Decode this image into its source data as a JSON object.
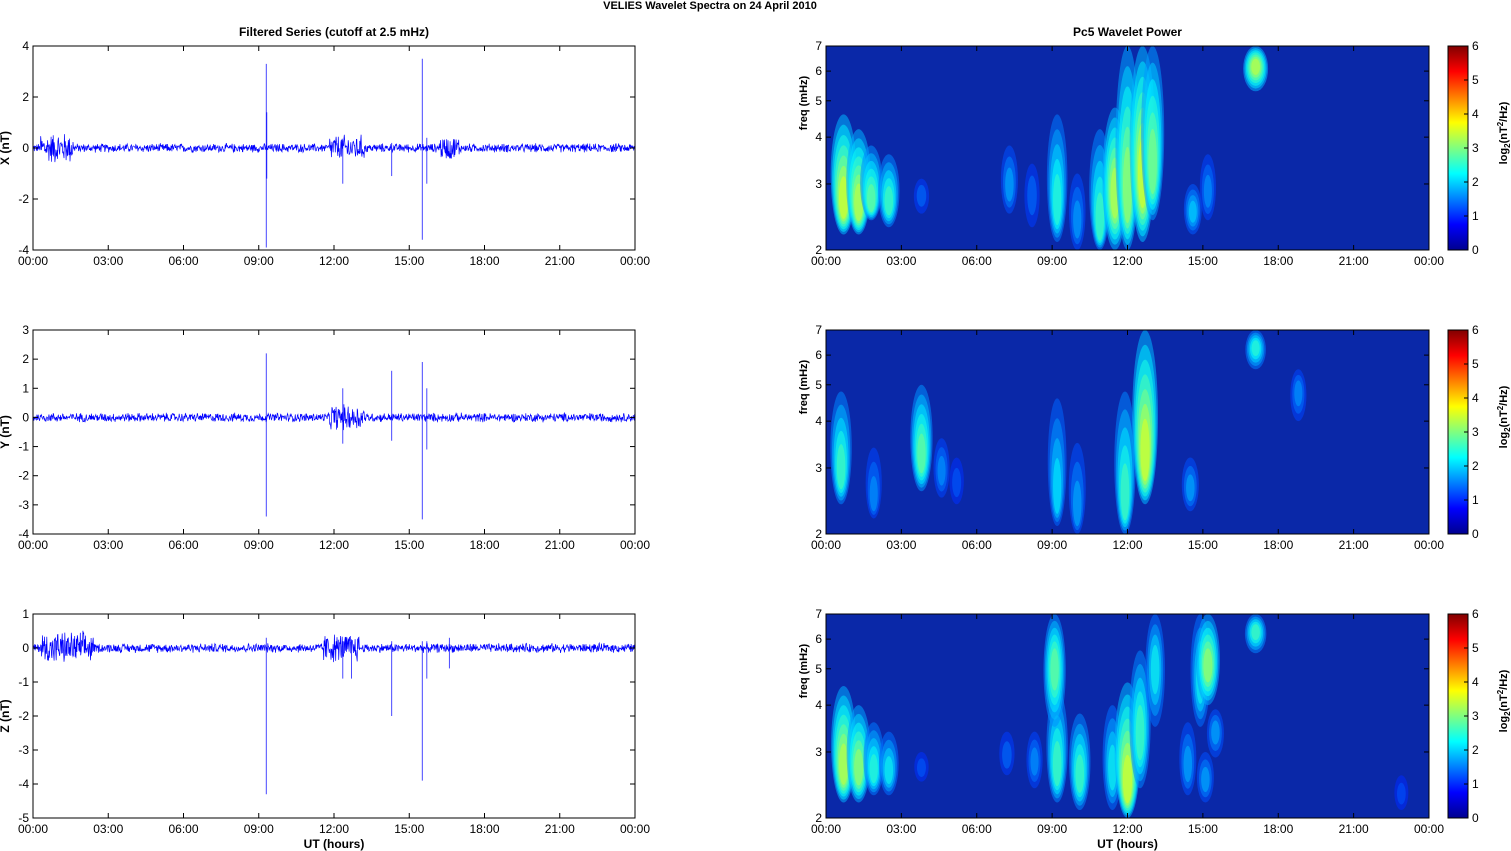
{
  "suptitle": "VELIES Wavelet Spectra on 24 April     2010",
  "colors": {
    "trace": "#0000ff",
    "background": "#ffffff",
    "axis": "#000000",
    "spectrum_floor": "#0a28a8"
  },
  "chart_data": [
    {
      "type": "line",
      "title": "Filtered Series (cutoff at 2.5 mHz)",
      "xlabel": "",
      "ylabel": "X (nT)",
      "xticks": [
        "00:00",
        "03:00",
        "06:00",
        "09:00",
        "12:00",
        "15:00",
        "18:00",
        "21:00",
        "00:00"
      ],
      "xlim": [
        0,
        24
      ],
      "ylim": [
        -4,
        4
      ],
      "yticks": [
        "-4",
        "-2",
        "0",
        "2",
        "4"
      ],
      "noise_amplitude": 0.18,
      "bursts": [
        [
          0.3,
          1.6,
          0.45
        ],
        [
          11.8,
          13.2,
          0.35
        ],
        [
          16.2,
          17.0,
          0.3
        ]
      ],
      "spikes": [
        {
          "t": 9.3,
          "min": -3.9,
          "max": 3.3
        },
        {
          "t": 9.32,
          "min": -1.2,
          "max": 1.4
        },
        {
          "t": 12.35,
          "min": -1.4,
          "max": 0.3
        },
        {
          "t": 14.3,
          "min": -1.1,
          "max": 0.2
        },
        {
          "t": 15.52,
          "min": -3.6,
          "max": 3.5
        },
        {
          "t": 15.7,
          "min": -1.4,
          "max": 0.4
        }
      ]
    },
    {
      "type": "heatmap",
      "title": "Pc5 Wavelet Power",
      "xlabel": "",
      "ylabel": "freq (mHz)",
      "colorbar_label": "log2(nT2/Hz)",
      "colorbar_ticks": [
        "0",
        "1",
        "2",
        "3",
        "4",
        "5",
        "6"
      ],
      "clim": [
        0,
        6
      ],
      "colormap": "jet",
      "xticks": [
        "00:00",
        "03:00",
        "06:00",
        "09:00",
        "12:00",
        "15:00",
        "18:00",
        "21:00",
        "00:00"
      ],
      "xlim": [
        0,
        24
      ],
      "ylim": [
        2,
        7
      ],
      "yscale": "log",
      "yticks": [
        "2",
        "3",
        "4",
        "5",
        "6",
        "7"
      ],
      "blobs": [
        [
          0.7,
          2.55,
          2.2,
          4.6,
          3.6
        ],
        [
          1.3,
          2.5,
          2.2,
          4.2,
          3.4
        ],
        [
          1.8,
          2.6,
          2.4,
          3.8,
          2.8
        ],
        [
          2.5,
          2.6,
          2.3,
          3.6,
          2.6
        ],
        [
          3.8,
          2.8,
          2.5,
          3.1,
          1.2
        ],
        [
          7.3,
          2.9,
          2.5,
          3.8,
          1.6
        ],
        [
          8.2,
          2.8,
          2.3,
          3.4,
          1.2
        ],
        [
          9.2,
          2.5,
          2.1,
          4.6,
          2.4
        ],
        [
          10.0,
          2.3,
          2.0,
          3.2,
          1.5
        ],
        [
          10.9,
          2.2,
          2.0,
          4.2,
          2.6
        ],
        [
          11.5,
          2.7,
          2.0,
          4.8,
          3.4
        ],
        [
          12.0,
          2.6,
          2.0,
          7.0,
          3.2
        ],
        [
          12.6,
          2.9,
          2.1,
          7.0,
          3.6
        ],
        [
          13.0,
          3.1,
          2.4,
          7.0,
          3.0
        ],
        [
          14.6,
          2.5,
          2.2,
          3.0,
          1.8
        ],
        [
          15.2,
          2.8,
          2.4,
          3.6,
          1.4
        ],
        [
          17.1,
          6.2,
          5.3,
          7.0,
          3.4
        ]
      ]
    },
    {
      "type": "line",
      "title": "",
      "xlabel": "",
      "ylabel": "Y (nT)",
      "xticks": [
        "00:00",
        "03:00",
        "06:00",
        "09:00",
        "12:00",
        "15:00",
        "18:00",
        "21:00",
        "00:00"
      ],
      "xlim": [
        0,
        24
      ],
      "ylim": [
        -4,
        3
      ],
      "yticks": [
        "-4",
        "-3",
        "-2",
        "-1",
        "0",
        "1",
        "2",
        "3"
      ],
      "noise_amplitude": 0.16,
      "bursts": [
        [
          11.8,
          13.2,
          0.3
        ]
      ],
      "spikes": [
        {
          "t": 9.3,
          "min": -3.4,
          "max": 2.2
        },
        {
          "t": 12.35,
          "min": -0.9,
          "max": 1.0
        },
        {
          "t": 14.3,
          "min": -0.8,
          "max": 1.6
        },
        {
          "t": 15.52,
          "min": -3.5,
          "max": 1.9
        },
        {
          "t": 15.7,
          "min": -1.1,
          "max": 1.0
        }
      ]
    },
    {
      "type": "heatmap",
      "title": "",
      "xlabel": "",
      "ylabel": "freq (mHz)",
      "colorbar_label": "log2(nT2/Hz)",
      "colorbar_ticks": [
        "0",
        "1",
        "2",
        "3",
        "4",
        "5",
        "6"
      ],
      "clim": [
        0,
        6
      ],
      "colormap": "jet",
      "xticks": [
        "00:00",
        "03:00",
        "06:00",
        "09:00",
        "12:00",
        "15:00",
        "18:00",
        "21:00",
        "00:00"
      ],
      "xlim": [
        0,
        24
      ],
      "ylim": [
        2,
        7
      ],
      "yscale": "log",
      "yticks": [
        "2",
        "3",
        "4",
        "5",
        "6",
        "7"
      ],
      "blobs": [
        [
          0.6,
          2.8,
          2.4,
          4.8,
          2.6
        ],
        [
          1.9,
          2.4,
          2.2,
          3.4,
          1.4
        ],
        [
          3.8,
          3.1,
          2.6,
          5.0,
          2.8
        ],
        [
          4.6,
          2.9,
          2.5,
          3.6,
          1.4
        ],
        [
          5.2,
          2.7,
          2.4,
          3.2,
          1.0
        ],
        [
          9.2,
          2.4,
          2.1,
          4.6,
          2.0
        ],
        [
          10.0,
          2.2,
          2.0,
          3.5,
          1.6
        ],
        [
          11.9,
          2.3,
          2.0,
          4.8,
          2.6
        ],
        [
          12.7,
          3.0,
          2.4,
          7.0,
          3.6
        ],
        [
          14.5,
          2.6,
          2.3,
          3.2,
          1.6
        ],
        [
          17.1,
          6.3,
          5.5,
          7.0,
          2.4
        ],
        [
          18.8,
          4.8,
          4.0,
          5.5,
          1.4
        ]
      ]
    },
    {
      "type": "line",
      "title": "",
      "xlabel": "UT (hours)",
      "ylabel": "Z (nT)",
      "xticks": [
        "00:00",
        "03:00",
        "06:00",
        "09:00",
        "12:00",
        "15:00",
        "18:00",
        "21:00",
        "00:00"
      ],
      "xlim": [
        0,
        24
      ],
      "ylim": [
        -5,
        1
      ],
      "yticks": [
        "-5",
        "-4",
        "-3",
        "-2",
        "-1",
        "0",
        "1"
      ],
      "noise_amplitude": 0.14,
      "bursts": [
        [
          0.3,
          2.4,
          0.35
        ],
        [
          11.5,
          13.0,
          0.3
        ]
      ],
      "spikes": [
        {
          "t": 9.3,
          "min": -4.3,
          "max": 0.3
        },
        {
          "t": 12.35,
          "min": -0.9,
          "max": 0.2
        },
        {
          "t": 12.7,
          "min": -0.9,
          "max": 0.2
        },
        {
          "t": 14.3,
          "min": -2.0,
          "max": 0.2
        },
        {
          "t": 15.52,
          "min": -3.9,
          "max": 0.2
        },
        {
          "t": 15.7,
          "min": -0.9,
          "max": 0.2
        },
        {
          "t": 16.6,
          "min": -0.6,
          "max": 0.3
        }
      ]
    },
    {
      "type": "heatmap",
      "title": "",
      "xlabel": "UT (hours)",
      "ylabel": "freq (mHz)",
      "colorbar_label": "log2(nT2/Hz)",
      "colorbar_ticks": [
        "0",
        "1",
        "2",
        "3",
        "4",
        "5",
        "6"
      ],
      "clim": [
        0,
        6
      ],
      "colormap": "jet",
      "xticks": [
        "00:00",
        "03:00",
        "06:00",
        "09:00",
        "12:00",
        "15:00",
        "18:00",
        "21:00",
        "00:00"
      ],
      "xlim": [
        0,
        24
      ],
      "ylim": [
        2,
        7
      ],
      "yscale": "log",
      "yticks": [
        "2",
        "3",
        "4",
        "5",
        "6",
        "7"
      ],
      "blobs": [
        [
          0.7,
          2.6,
          2.2,
          4.5,
          3.4
        ],
        [
          1.3,
          2.6,
          2.2,
          4.0,
          3.2
        ],
        [
          1.9,
          2.6,
          2.3,
          3.6,
          2.4
        ],
        [
          2.5,
          2.6,
          2.3,
          3.4,
          2.2
        ],
        [
          3.8,
          2.7,
          2.5,
          3.0,
          1.0
        ],
        [
          7.2,
          2.9,
          2.6,
          3.4,
          1.2
        ],
        [
          8.3,
          2.8,
          2.4,
          3.4,
          1.4
        ],
        [
          9.2,
          2.6,
          2.2,
          4.4,
          2.6
        ],
        [
          9.1,
          5.0,
          3.5,
          7.0,
          2.8
        ],
        [
          10.1,
          2.5,
          2.1,
          3.8,
          2.6
        ],
        [
          11.4,
          2.6,
          2.1,
          4.0,
          2.2
        ],
        [
          12.0,
          2.3,
          2.0,
          4.6,
          3.6
        ],
        [
          12.5,
          3.2,
          2.4,
          5.6,
          2.6
        ],
        [
          13.1,
          5.0,
          3.5,
          7.0,
          2.2
        ],
        [
          14.4,
          2.7,
          2.3,
          3.6,
          1.6
        ],
        [
          14.9,
          4.5,
          3.5,
          7.0,
          2.2
        ],
        [
          15.1,
          2.5,
          2.2,
          3.0,
          1.6
        ],
        [
          15.2,
          5.0,
          4.0,
          7.0,
          3.2
        ],
        [
          15.5,
          3.4,
          2.9,
          3.9,
          1.6
        ],
        [
          17.1,
          6.3,
          5.5,
          7.0,
          2.6
        ],
        [
          22.9,
          2.3,
          2.1,
          2.6,
          0.9
        ]
      ]
    }
  ]
}
